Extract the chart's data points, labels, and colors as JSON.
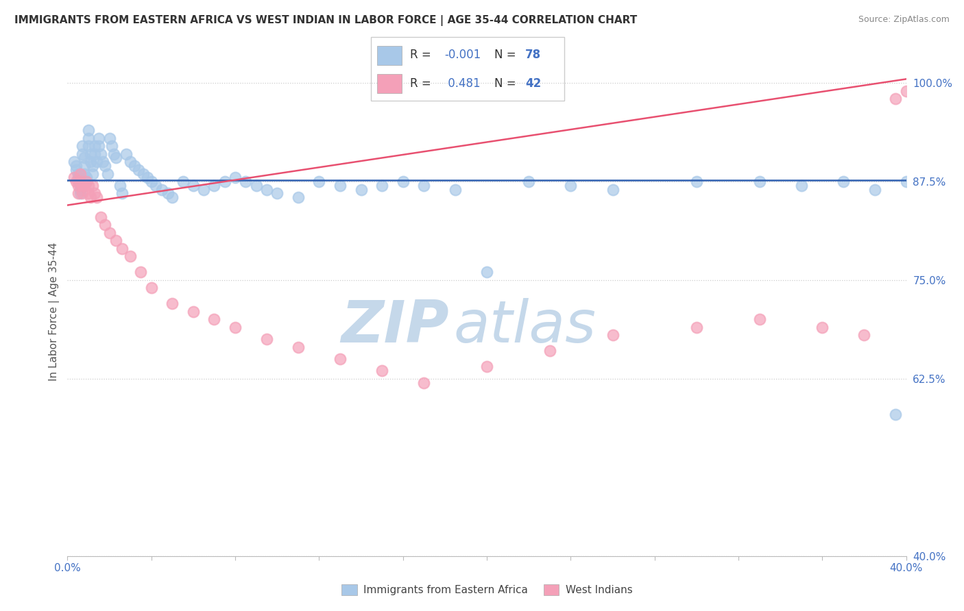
{
  "title": "IMMIGRANTS FROM EASTERN AFRICA VS WEST INDIAN IN LABOR FORCE | AGE 35-44 CORRELATION CHART",
  "source": "Source: ZipAtlas.com",
  "ylabel": "In Labor Force | Age 35-44",
  "xlim": [
    0.0,
    0.4
  ],
  "ylim": [
    0.4,
    1.02
  ],
  "yticks": [
    0.4,
    0.625,
    0.75,
    0.875,
    1.0
  ],
  "ytick_labels": [
    "40.0%",
    "62.5%",
    "75.0%",
    "87.5%",
    "100.0%"
  ],
  "blue_color": "#A8C8E8",
  "pink_color": "#F4A0B8",
  "blue_line_color": "#3060B0",
  "pink_line_color": "#E85070",
  "watermark_zip": "ZIP",
  "watermark_atlas": "atlas",
  "watermark_color": "#C5D8EA",
  "blue_x": [
    0.003,
    0.004,
    0.004,
    0.005,
    0.005,
    0.005,
    0.006,
    0.006,
    0.006,
    0.007,
    0.007,
    0.008,
    0.008,
    0.008,
    0.009,
    0.009,
    0.01,
    0.01,
    0.01,
    0.011,
    0.011,
    0.012,
    0.012,
    0.013,
    0.013,
    0.014,
    0.015,
    0.015,
    0.016,
    0.017,
    0.018,
    0.019,
    0.02,
    0.021,
    0.022,
    0.023,
    0.025,
    0.026,
    0.028,
    0.03,
    0.032,
    0.034,
    0.036,
    0.038,
    0.04,
    0.042,
    0.045,
    0.048,
    0.05,
    0.055,
    0.06,
    0.065,
    0.07,
    0.075,
    0.08,
    0.085,
    0.09,
    0.095,
    0.1,
    0.11,
    0.12,
    0.13,
    0.14,
    0.15,
    0.16,
    0.17,
    0.185,
    0.2,
    0.22,
    0.24,
    0.26,
    0.3,
    0.33,
    0.35,
    0.37,
    0.385,
    0.395,
    0.4
  ],
  "blue_y": [
    0.9,
    0.895,
    0.89,
    0.885,
    0.88,
    0.875,
    0.87,
    0.865,
    0.86,
    0.92,
    0.91,
    0.905,
    0.895,
    0.885,
    0.88,
    0.875,
    0.94,
    0.93,
    0.92,
    0.91,
    0.9,
    0.895,
    0.885,
    0.92,
    0.91,
    0.9,
    0.93,
    0.92,
    0.91,
    0.9,
    0.895,
    0.885,
    0.93,
    0.92,
    0.91,
    0.905,
    0.87,
    0.86,
    0.91,
    0.9,
    0.895,
    0.89,
    0.885,
    0.88,
    0.875,
    0.87,
    0.865,
    0.86,
    0.855,
    0.875,
    0.87,
    0.865,
    0.87,
    0.875,
    0.88,
    0.875,
    0.87,
    0.865,
    0.86,
    0.855,
    0.875,
    0.87,
    0.865,
    0.87,
    0.875,
    0.87,
    0.865,
    0.76,
    0.875,
    0.87,
    0.865,
    0.875,
    0.875,
    0.87,
    0.875,
    0.865,
    0.58,
    0.875
  ],
  "pink_x": [
    0.003,
    0.004,
    0.005,
    0.005,
    0.006,
    0.006,
    0.007,
    0.007,
    0.008,
    0.009,
    0.01,
    0.01,
    0.011,
    0.012,
    0.013,
    0.014,
    0.016,
    0.018,
    0.02,
    0.023,
    0.026,
    0.03,
    0.035,
    0.04,
    0.05,
    0.06,
    0.07,
    0.08,
    0.095,
    0.11,
    0.13,
    0.15,
    0.17,
    0.2,
    0.23,
    0.26,
    0.3,
    0.33,
    0.36,
    0.38,
    0.395,
    0.4
  ],
  "pink_y": [
    0.88,
    0.875,
    0.87,
    0.86,
    0.885,
    0.875,
    0.87,
    0.86,
    0.87,
    0.875,
    0.87,
    0.86,
    0.855,
    0.87,
    0.86,
    0.855,
    0.83,
    0.82,
    0.81,
    0.8,
    0.79,
    0.78,
    0.76,
    0.74,
    0.72,
    0.71,
    0.7,
    0.69,
    0.675,
    0.665,
    0.65,
    0.635,
    0.62,
    0.64,
    0.66,
    0.68,
    0.69,
    0.7,
    0.69,
    0.68,
    0.98,
    0.99
  ],
  "blue_line_y0": 0.877,
  "blue_line_y1": 0.877,
  "pink_line_x0": 0.0,
  "pink_line_y0": 0.845,
  "pink_line_x1": 0.4,
  "pink_line_y1": 1.005
}
